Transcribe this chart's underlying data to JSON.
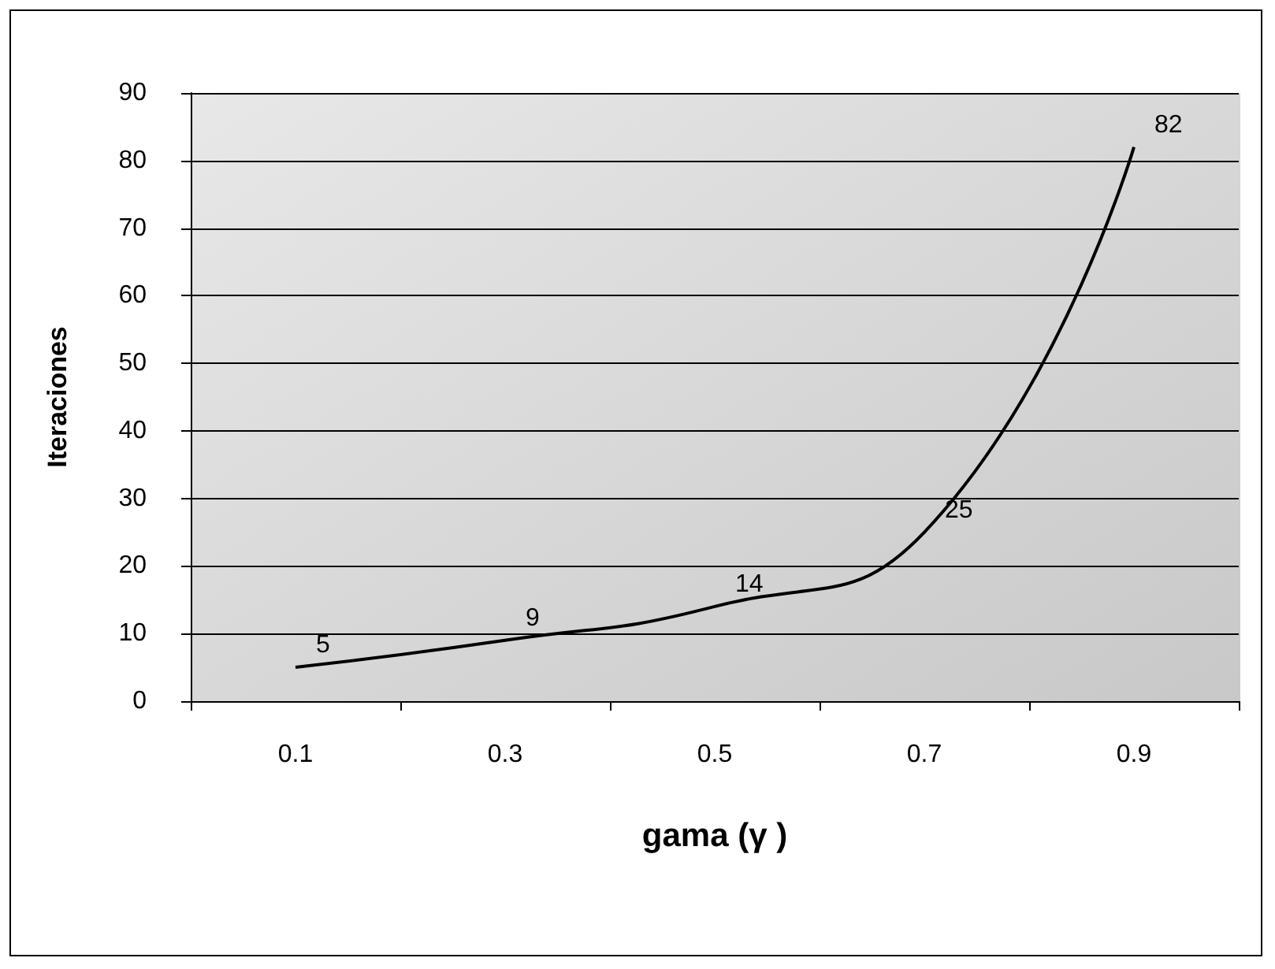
{
  "chart_data": {
    "type": "line",
    "xlabel": "gama (γ )",
    "ylabel": "Iteraciones",
    "categories": [
      "0.1",
      "0.3",
      "0.5",
      "0.7",
      "0.9"
    ],
    "series": [
      {
        "color": "#000000",
        "values": [
          5,
          9,
          14,
          25,
          82
        ]
      }
    ],
    "ylim": [
      0,
      90
    ],
    "yticks": [
      0,
      10,
      20,
      30,
      40,
      50,
      60,
      70,
      80,
      90
    ],
    "grid": "y",
    "marker": "none",
    "line_style": "solid",
    "data_labels": true
  }
}
